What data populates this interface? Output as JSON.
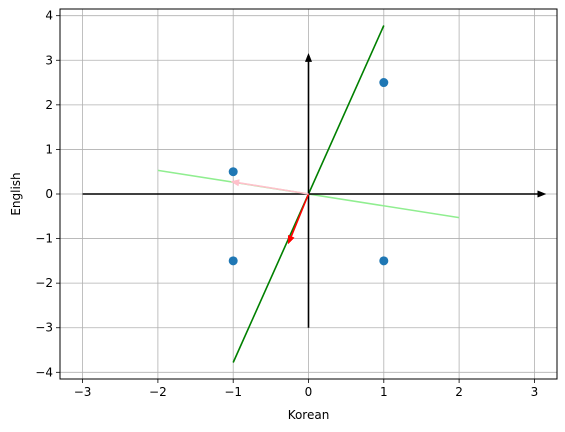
{
  "chart_data": {
    "type": "scatter",
    "xlabel": "Korean",
    "ylabel": "English",
    "xlim": [
      -3.3,
      3.3
    ],
    "ylim": [
      -4.15,
      4.15
    ],
    "grid": true,
    "xticks": [
      -3,
      -2,
      -1,
      0,
      1,
      2,
      3
    ],
    "yticks": [
      -4,
      -3,
      -2,
      -1,
      0,
      1,
      2,
      3,
      4
    ],
    "xtick_labels": [
      "−3",
      "−2",
      "−1",
      "0",
      "1",
      "2",
      "3"
    ],
    "ytick_labels": [
      "−4",
      "−3",
      "−2",
      "−1",
      "0",
      "1",
      "2",
      "3",
      "4"
    ],
    "points": {
      "color": "#1f77b4",
      "x": [
        -1,
        -1,
        1,
        1
      ],
      "y": [
        0.5,
        -1.5,
        2.5,
        -1.5
      ]
    },
    "lines": [
      {
        "color": "#008000",
        "x": [
          -1.0,
          1.0
        ],
        "y": [
          -3.78,
          3.78
        ]
      },
      {
        "color": "#90ee90",
        "x": [
          -2.0,
          2.0
        ],
        "y": [
          0.53,
          -0.53
        ]
      }
    ],
    "arrows": [
      {
        "color": "#000000",
        "from": [
          -3.0,
          0.0
        ],
        "to": [
          3.15,
          0.0
        ]
      },
      {
        "color": "#000000",
        "from": [
          0.0,
          -3.0
        ],
        "to": [
          0.0,
          3.15
        ]
      },
      {
        "color": "#ff0000",
        "from": [
          0.0,
          0.0
        ],
        "to": [
          -0.27,
          -1.12
        ]
      },
      {
        "color": "#ffc0cb",
        "from": [
          0.0,
          0.0
        ],
        "to": [
          -1.03,
          0.28
        ]
      }
    ]
  }
}
